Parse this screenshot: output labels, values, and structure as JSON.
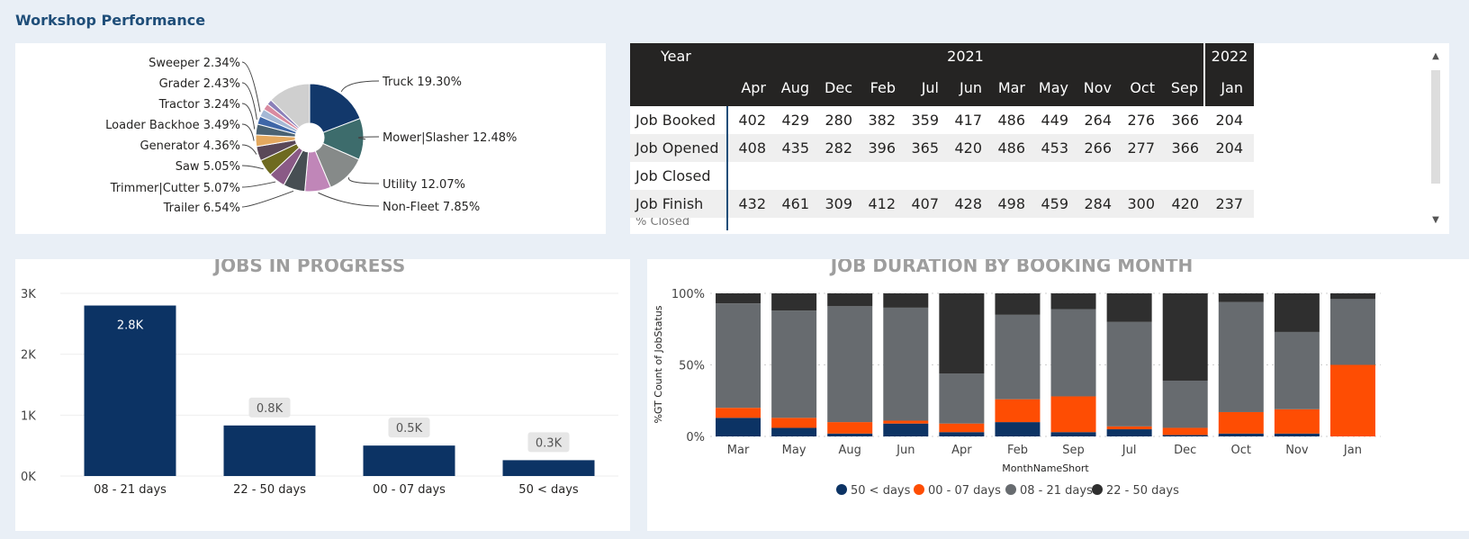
{
  "page_title": "Workshop Performance",
  "colors": {
    "navy": "#0c3364",
    "orange": "#fe4d03",
    "gray": "#676b6f",
    "dark": "#2f2f2f",
    "bg": "#e9eff6"
  },
  "chart_data": [
    {
      "type": "pie",
      "title": "",
      "slices": [
        {
          "label": "Truck",
          "percent_label": "19.30%",
          "value": 19.3,
          "color": "#12386b"
        },
        {
          "label": "Mower|Slasher",
          "percent_label": "12.48%",
          "value": 12.48,
          "color": "#3d6c6c"
        },
        {
          "label": "Utility",
          "percent_label": "12.07%",
          "value": 12.07,
          "color": "#868a89"
        },
        {
          "label": "Non-Fleet",
          "percent_label": "7.85%",
          "value": 7.85,
          "color": "#c086b8"
        },
        {
          "label": "Trailer",
          "percent_label": "6.54%",
          "value": 6.54,
          "color": "#474e53"
        },
        {
          "label": "Trimmer|Cutter",
          "percent_label": "5.07%",
          "value": 5.07,
          "color": "#8a5a86"
        },
        {
          "label": "Saw",
          "percent_label": "5.05%",
          "value": 5.05,
          "color": "#6e6a20"
        },
        {
          "label": "Generator",
          "percent_label": "4.36%",
          "value": 4.36,
          "color": "#5a4858"
        },
        {
          "label": "Loader Backhoe",
          "percent_label": "3.49%",
          "value": 3.49,
          "color": "#e3a85f"
        },
        {
          "label": "Tractor",
          "percent_label": "3.24%",
          "value": 3.24,
          "color": "#4a6273"
        },
        {
          "label": "Grader",
          "percent_label": "2.43%",
          "value": 2.43,
          "color": "#3f67a8"
        },
        {
          "label": "Sweeper",
          "percent_label": "2.34%",
          "value": 2.34,
          "color": "#a5b8d5"
        },
        {
          "label": "",
          "percent_label": "",
          "value": 1.9,
          "color": "#d98aa0"
        },
        {
          "label": "",
          "percent_label": "",
          "value": 1.6,
          "color": "#8a7fb8"
        },
        {
          "label": "",
          "percent_label": "",
          "value": 12.78,
          "color": "#cfcfcf"
        }
      ]
    },
    {
      "type": "table",
      "header_label": "Year",
      "years": [
        {
          "label": "2021",
          "span": 11
        },
        {
          "label": "2022",
          "span": 1
        }
      ],
      "months": [
        "Apr",
        "Aug",
        "Dec",
        "Feb",
        "Jul",
        "Jun",
        "Mar",
        "May",
        "Nov",
        "Oct",
        "Sep",
        "Jan"
      ],
      "rows": [
        {
          "label": "Job Booked",
          "values": [
            "402",
            "429",
            "280",
            "382",
            "359",
            "417",
            "486",
            "449",
            "264",
            "276",
            "366",
            "204"
          ]
        },
        {
          "label": "Job Opened",
          "values": [
            "408",
            "435",
            "282",
            "396",
            "365",
            "420",
            "486",
            "453",
            "266",
            "277",
            "366",
            "204"
          ]
        },
        {
          "label": "Job Closed",
          "values": [
            "",
            "",
            "",
            "",
            "",
            "",
            "",
            "",
            "",
            "",
            "",
            ""
          ]
        },
        {
          "label": "Job Finish",
          "values": [
            "432",
            "461",
            "309",
            "412",
            "407",
            "428",
            "498",
            "459",
            "284",
            "300",
            "420",
            "237"
          ]
        },
        {
          "label": "% Closed",
          "values": [
            "",
            "",
            "",
            "",
            "",
            "",
            "",
            "",
            "",
            "",
            "",
            ""
          ]
        }
      ]
    },
    {
      "type": "bar",
      "title": "JOBS IN PROGRESS",
      "categories": [
        "08 - 21 days",
        "22 - 50 days",
        "00 - 07 days",
        "50 < days"
      ],
      "values": [
        2800,
        830,
        500,
        260
      ],
      "data_labels": [
        "2.8K",
        "0.8K",
        "0.5K",
        "0.3K"
      ],
      "yticks": [
        "0K",
        "1K",
        "2K",
        "3K"
      ],
      "ylim": [
        0,
        3000
      ],
      "color": "#0c3364"
    },
    {
      "type": "bar",
      "stacked": true,
      "title": "JOB DURATION BY BOOKING MONTH",
      "xlabel": "MonthNameShort",
      "ylabel": "%GT Count of JobStatus",
      "yticks": [
        "0%",
        "50%",
        "100%"
      ],
      "categories": [
        "Mar",
        "May",
        "Aug",
        "Jun",
        "Apr",
        "Feb",
        "Sep",
        "Jul",
        "Dec",
        "Oct",
        "Nov",
        "Jan"
      ],
      "series": [
        {
          "name": "50 < days",
          "color": "#0c3364",
          "values": [
            13,
            6,
            2,
            9,
            3,
            10,
            3,
            5,
            1,
            2,
            2,
            0
          ]
        },
        {
          "name": "00 - 07 days",
          "color": "#fe4d03",
          "values": [
            7,
            7,
            8,
            2,
            6,
            16,
            25,
            2,
            5,
            15,
            17,
            50
          ]
        },
        {
          "name": "08 - 21 days",
          "color": "#676b6f",
          "values": [
            73,
            75,
            81,
            79,
            35,
            59,
            61,
            73,
            33,
            77,
            54,
            46
          ]
        },
        {
          "name": "22 - 50 days",
          "color": "#2f2f2f",
          "values": [
            7,
            12,
            9,
            10,
            56,
            15,
            11,
            20,
            61,
            6,
            27,
            4
          ]
        }
      ]
    }
  ]
}
